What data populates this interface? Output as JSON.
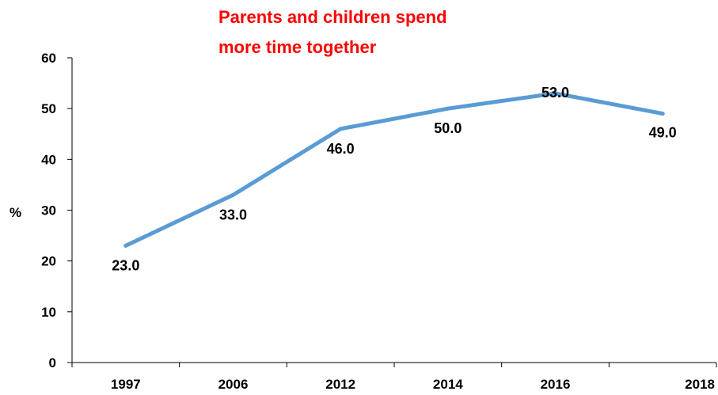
{
  "chart_data": {
    "type": "line",
    "title_lines": [
      "Parents and children spend",
      "more time together"
    ],
    "ylabel": "%",
    "xlabel": "",
    "categories": [
      "1997",
      "2006",
      "2012",
      "2014",
      "2016",
      "2018"
    ],
    "series": [
      {
        "values": [
          23.0,
          33.0,
          46.0,
          50.0,
          53.0,
          49.0
        ],
        "data_labels": [
          "23.0",
          "33.0",
          "46.0",
          "50.0",
          "53.0",
          "49.0"
        ]
      }
    ],
    "ylim": [
      0,
      60
    ],
    "yticks": [
      0,
      10,
      20,
      30,
      40,
      50,
      60
    ],
    "ytick_labels": [
      "0",
      "10",
      "20",
      "30",
      "40",
      "50",
      "60"
    ],
    "grid": false,
    "legend": "none",
    "colors": {
      "title": "#ff0000",
      "line": "#5b9bd5",
      "axis": "#000000",
      "text": "#000000"
    }
  }
}
